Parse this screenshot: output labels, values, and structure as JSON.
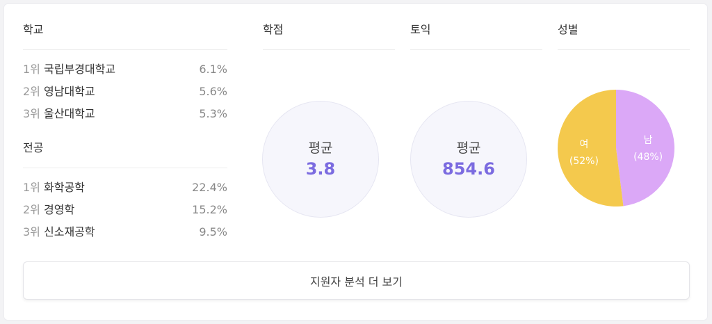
{
  "school": {
    "title": "학교",
    "items": [
      {
        "rank": "1위",
        "name": "국립부경대학교",
        "pct": "6.1%"
      },
      {
        "rank": "2위",
        "name": "영남대학교",
        "pct": "5.6%"
      },
      {
        "rank": "3위",
        "name": "울산대학교",
        "pct": "5.3%"
      }
    ]
  },
  "major": {
    "title": "전공",
    "items": [
      {
        "rank": "1위",
        "name": "화학공학",
        "pct": "22.4%"
      },
      {
        "rank": "2위",
        "name": "경영학",
        "pct": "15.2%"
      },
      {
        "rank": "3위",
        "name": "신소재공학",
        "pct": "9.5%"
      }
    ]
  },
  "gpa": {
    "title": "학점",
    "label": "평균",
    "value": "3.8"
  },
  "toeic": {
    "title": "토익",
    "label": "평균",
    "value": "854.6"
  },
  "gender": {
    "title": "성별",
    "slices": [
      {
        "label": "남",
        "pct_text": "(48%)",
        "value": 48,
        "color": "#dba8f7"
      },
      {
        "label": "여",
        "pct_text": "(52%)",
        "value": 52,
        "color": "#f4c94d"
      }
    ]
  },
  "more_button": "지원자 분석 더 보기"
}
